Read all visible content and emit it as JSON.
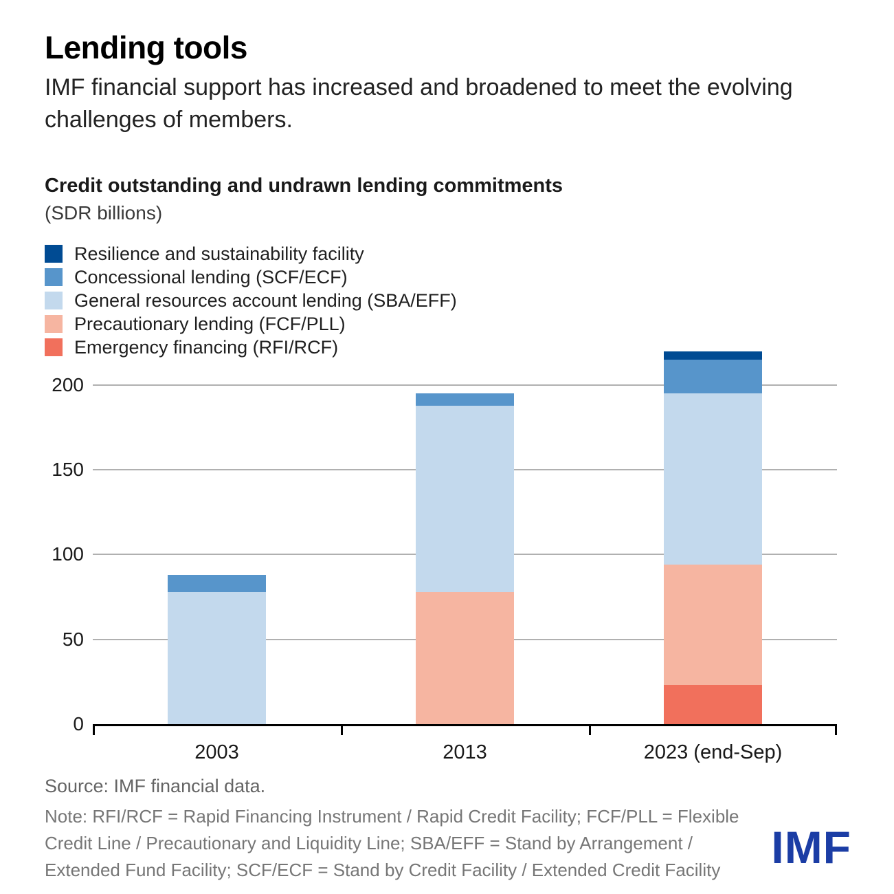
{
  "header": {
    "title": "Lending tools",
    "subtitle": "IMF financial support has increased and broadened to meet the evolving challenges of members."
  },
  "chart": {
    "heading": "Credit outstanding and undrawn lending commitments",
    "units": "(SDR billions)"
  },
  "chart_data": {
    "type": "bar",
    "stacked": true,
    "title": "Credit outstanding and undrawn lending commitments",
    "ylabel": "SDR billions",
    "xlabel": "",
    "categories": [
      "2003",
      "2013",
      "2023 (end-Sep)"
    ],
    "series": [
      {
        "name": "Emergency financing (RFI/RCF)",
        "color": "#F1705C",
        "values": [
          0,
          0,
          23
        ]
      },
      {
        "name": "Precautionary lending (FCF/PLL)",
        "color": "#F6B5A1",
        "values": [
          0,
          78,
          71
        ]
      },
      {
        "name": "General resources account lending (SBA/EFF)",
        "color": "#C3D9ED",
        "values": [
          78,
          110,
          101
        ]
      },
      {
        "name": "Concessional lending (SCF/ECF)",
        "color": "#5795CB",
        "values": [
          10,
          7,
          20
        ]
      },
      {
        "name": "Resilience and sustainability facility",
        "color": "#004B93",
        "values": [
          0,
          0,
          5
        ]
      }
    ],
    "totals": [
      88,
      195,
      220
    ],
    "legend_order": [
      "Resilience and sustainability facility",
      "Concessional lending (SCF/ECF)",
      "General resources account lending (SBA/EFF)",
      "Precautionary lending (FCF/PLL)",
      "Emergency financing (RFI/RCF)"
    ],
    "legend_position": "top-left",
    "y_ticks": [
      0,
      50,
      100,
      150,
      200
    ],
    "ylim": [
      0,
      230
    ],
    "grid": true
  },
  "footer": {
    "source": "Source: IMF financial data.",
    "note": "Note: RFI/RCF = Rapid Financing Instrument / Rapid Credit Facility; FCF/PLL = Flexible Credit Line / Precautionary and Liquidity Line; SBA/EFF = Stand by Arrangement / Extended Fund Facility; SCF/ECF = Stand by Credit Facility / Extended Credit Facility",
    "logo_text": "IMF",
    "logo_color": "#1B3DA5"
  }
}
